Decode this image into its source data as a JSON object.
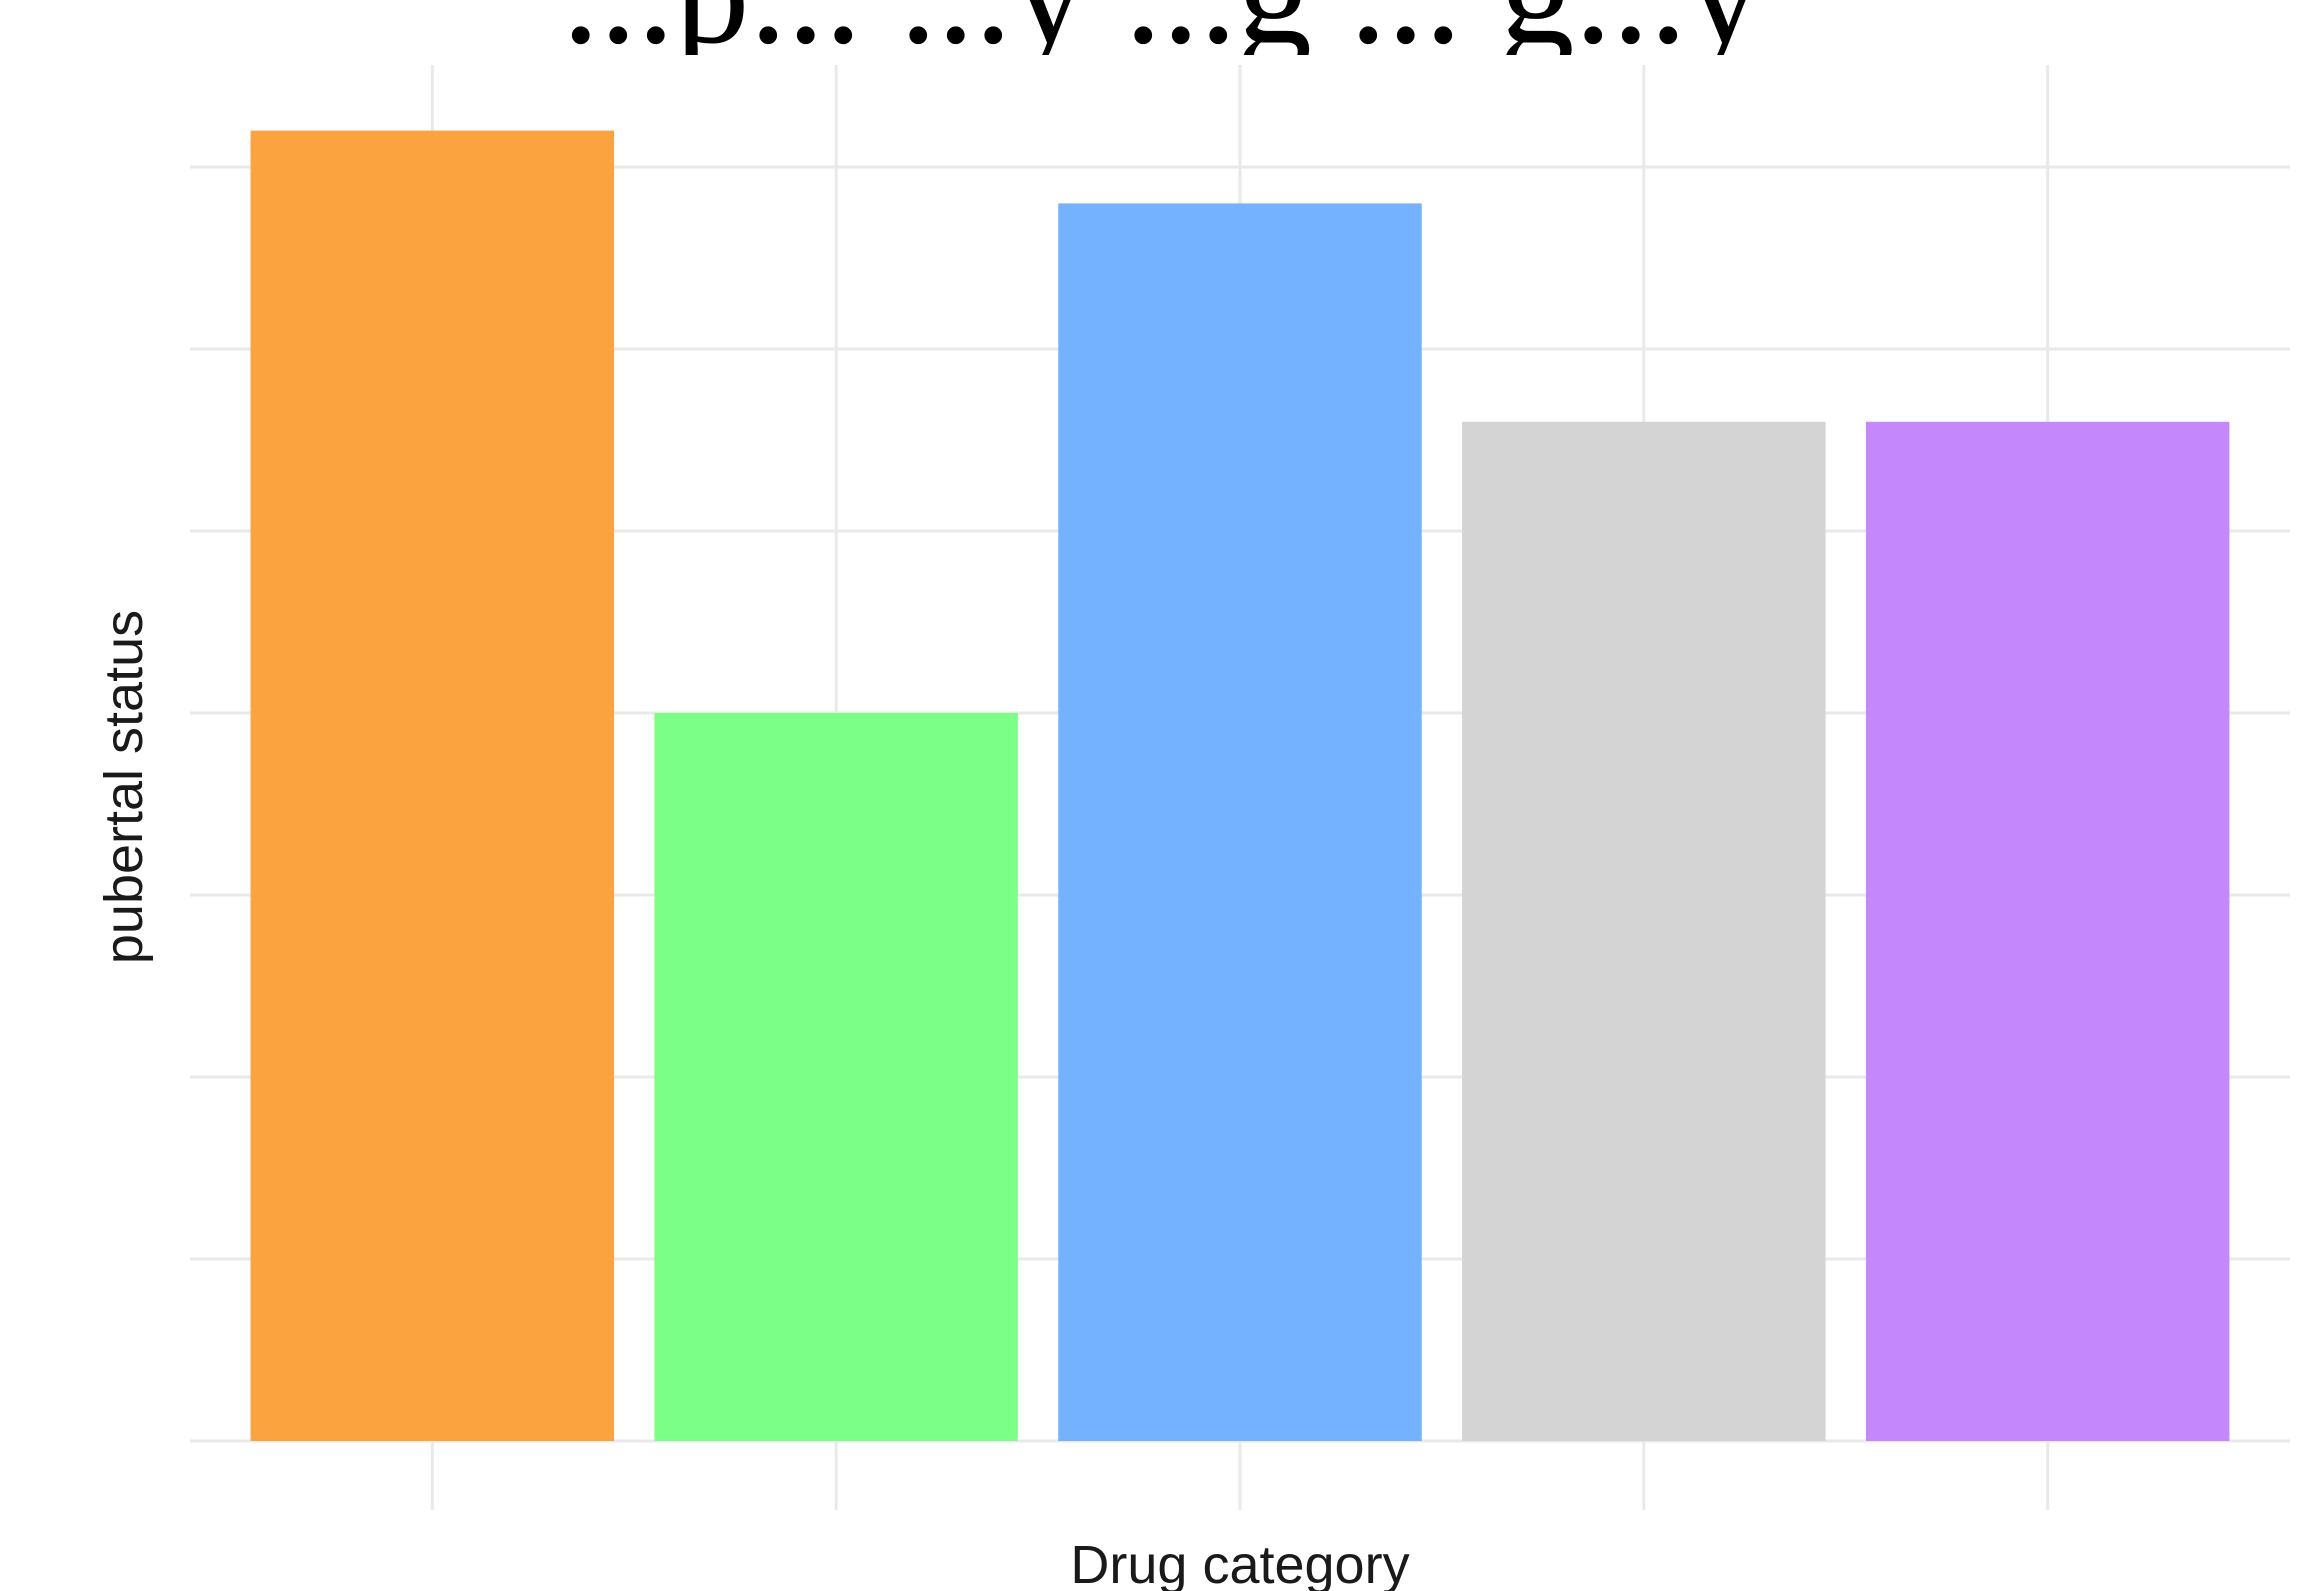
{
  "chart_data": {
    "type": "bar",
    "title": "...p... ...y ...g ... g...y",
    "xlabel": "Drug category",
    "ylabel": "pubertal status",
    "categories": [
      "",
      "",
      "",
      "",
      ""
    ],
    "values": [
      3.6,
      2.0,
      3.4,
      2.8,
      2.8
    ],
    "colors": [
      "#FBA33F",
      "#7BFF87",
      "#74B1FE",
      "#D4D4D4",
      "#C588FC"
    ],
    "ylim": [
      0,
      3.75
    ],
    "grid": true,
    "legend": "none"
  }
}
